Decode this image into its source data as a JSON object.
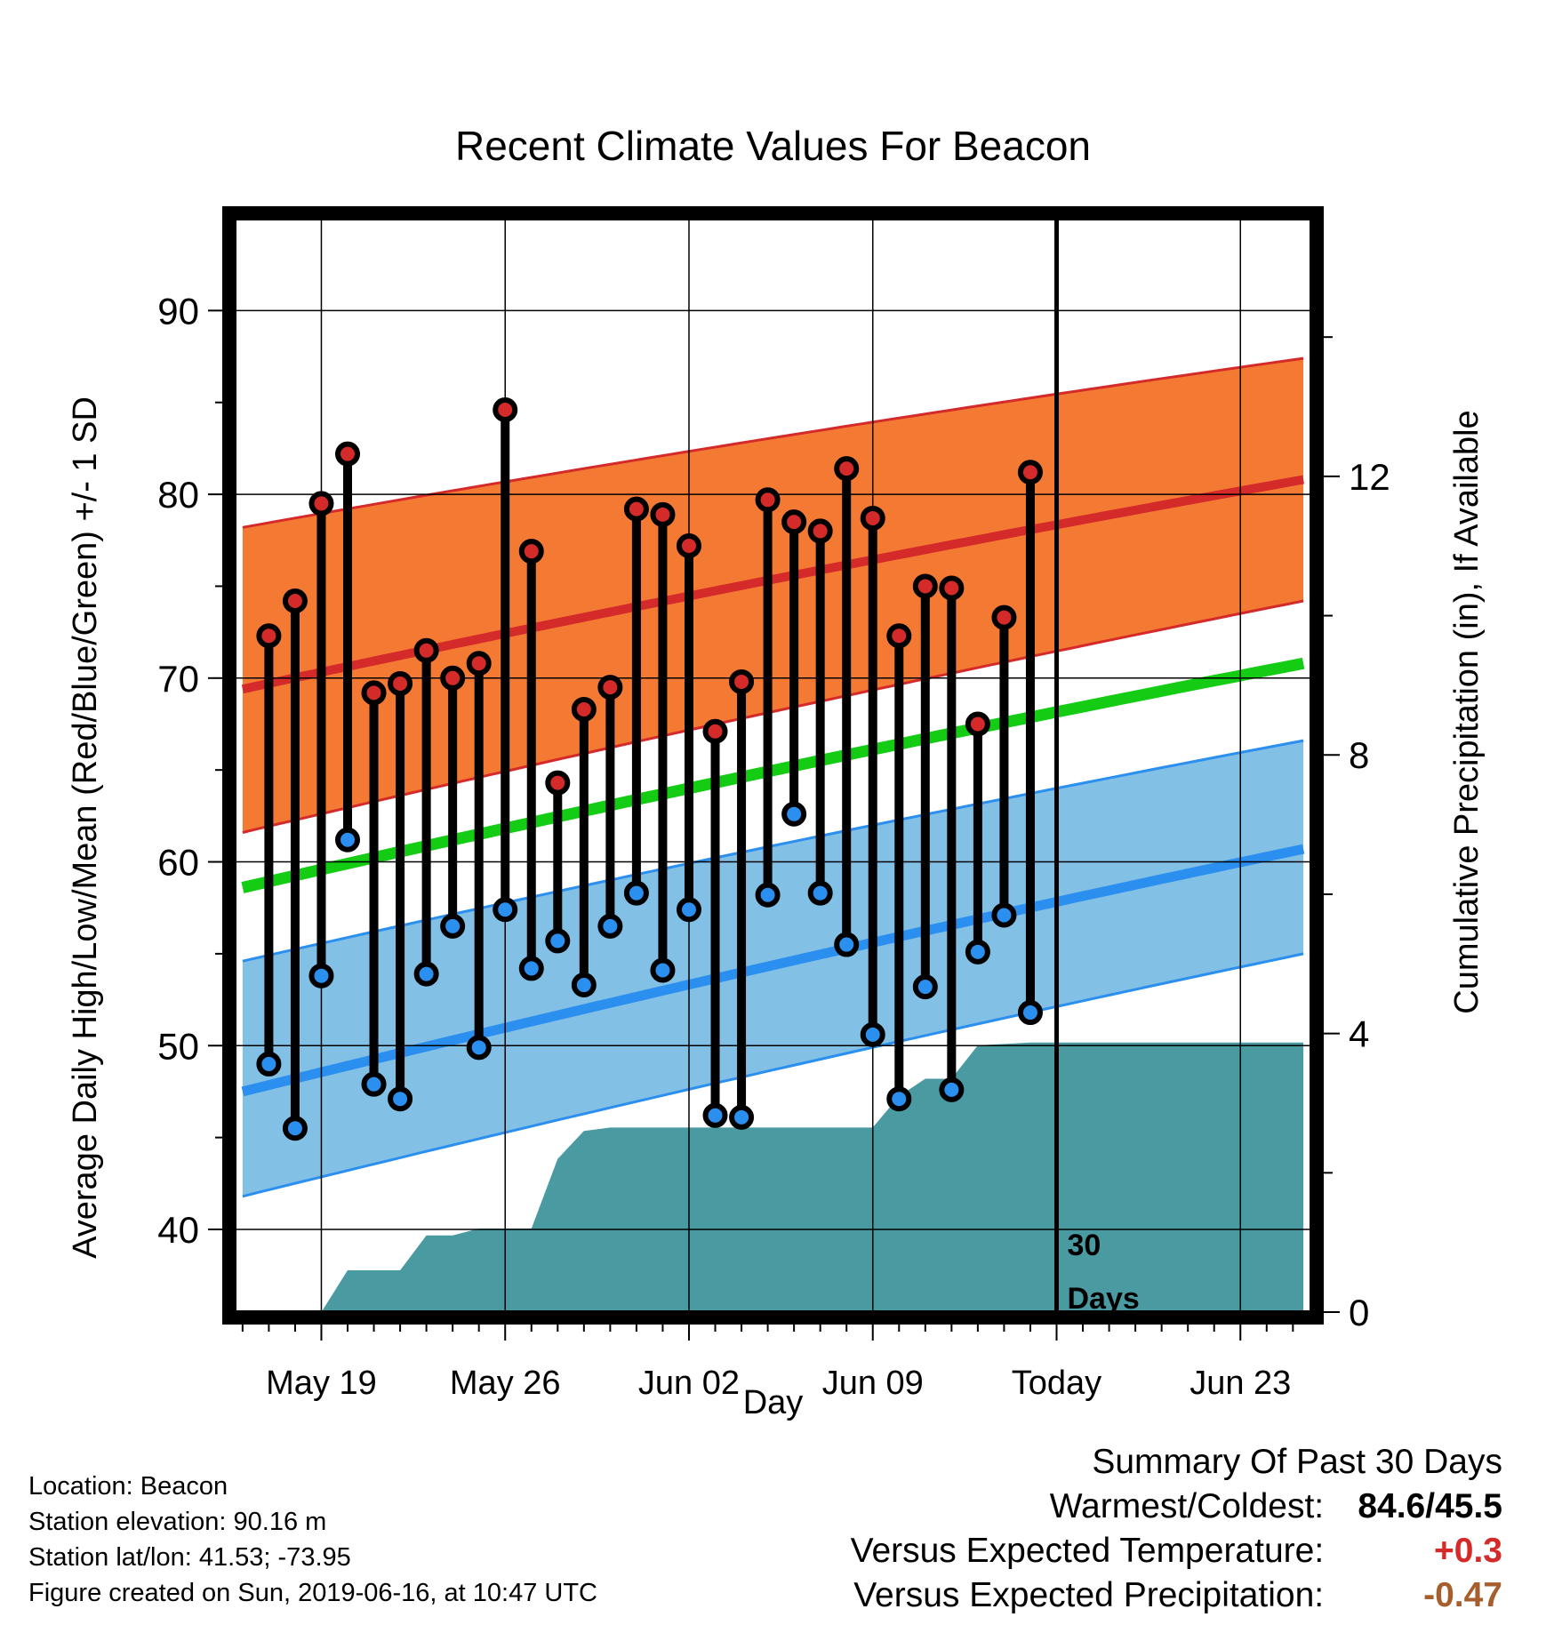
{
  "chart_data": {
    "type": "line",
    "title": "Recent Climate Values For Beacon",
    "xlabel": "Day",
    "ylabel": "Average Daily High/Low/Mean (Red/Blue/Green) +/- 1 SD",
    "y2label": "Cumulative Precipitation (in), If Available",
    "x_ticks": [
      {
        "day": 3,
        "label": "May 19"
      },
      {
        "day": 10,
        "label": "May 26"
      },
      {
        "day": 17,
        "label": "Jun 02"
      },
      {
        "day": 24,
        "label": "Jun 09"
      },
      {
        "day": 31,
        "label": "Today"
      },
      {
        "day": 38,
        "label": "Jun 23"
      }
    ],
    "today_day": 31,
    "today_label": [
      "30",
      "Days"
    ],
    "xlim": [
      -0.3,
      40.7
    ],
    "ylim": [
      35.5,
      95
    ],
    "y_ticks": [
      40,
      50,
      60,
      70,
      80,
      90
    ],
    "y2lim": [
      0,
      15.7
    ],
    "y2_ticks": [
      0,
      4,
      8,
      12
    ],
    "grid": true,
    "observed": {
      "days": [
        1,
        2,
        3,
        4,
        5,
        6,
        7,
        8,
        9,
        10,
        11,
        12,
        13,
        14,
        15,
        16,
        17,
        18,
        19,
        20,
        21,
        22,
        23,
        24,
        25,
        26,
        27,
        28,
        29,
        30
      ],
      "highs": [
        72.3,
        74.2,
        79.5,
        82.2,
        69.2,
        69.7,
        71.5,
        70.0,
        70.8,
        84.6,
        76.9,
        64.3,
        68.3,
        69.5,
        79.2,
        78.9,
        77.2,
        67.1,
        69.8,
        79.7,
        78.5,
        78.0,
        81.4,
        78.7,
        72.3,
        75.0,
        74.9,
        67.5,
        73.3,
        81.2
      ],
      "lows": [
        49.0,
        45.5,
        53.8,
        61.2,
        47.9,
        47.1,
        53.9,
        56.5,
        49.9,
        57.4,
        54.2,
        55.7,
        53.3,
        56.5,
        58.3,
        54.1,
        57.4,
        46.2,
        46.1,
        58.2,
        62.6,
        58.3,
        55.5,
        50.6,
        47.1,
        53.2,
        47.6,
        55.1,
        57.1,
        51.8
      ]
    },
    "normals": {
      "days": [
        0,
        40.4
      ],
      "high_mean": [
        69.4,
        80.8
      ],
      "high_upper": [
        78.2,
        87.4
      ],
      "high_lower": [
        61.6,
        74.2
      ],
      "low_mean": [
        47.5,
        60.7
      ],
      "low_upper": [
        54.6,
        66.6
      ],
      "low_lower": [
        41.8,
        55.0
      ],
      "mean": [
        58.6,
        70.8
      ]
    },
    "precipitation": {
      "days": [
        0,
        3,
        4,
        5,
        6,
        7,
        8,
        9,
        10,
        11,
        12,
        13,
        14,
        15,
        16,
        17,
        18,
        19,
        20,
        21,
        22,
        23,
        24,
        25,
        26,
        27,
        28,
        29,
        30,
        31,
        40.4
      ],
      "cumulative": [
        0,
        0,
        0.6,
        0.6,
        0.6,
        1.1,
        1.1,
        1.2,
        1.2,
        1.2,
        2.2,
        2.6,
        2.65,
        2.65,
        2.65,
        2.65,
        2.65,
        2.65,
        2.65,
        2.65,
        2.65,
        2.65,
        2.65,
        3.1,
        3.35,
        3.35,
        3.83,
        3.85,
        3.87,
        3.87,
        3.87
      ]
    },
    "colors": {
      "high_band": "#f47a33",
      "high_line": "#d42a2a",
      "low_band": "#83c0e5",
      "low_line": "#2b8ff0",
      "mean_line": "#14cc14",
      "precip_fill": "#4a9aa2",
      "high_marker": "#d42a2a",
      "low_marker": "#2b8ff0",
      "today_line": "#000000"
    }
  },
  "info": {
    "location": "Location: Beacon",
    "elevation": "Station elevation: 90.16 m",
    "latlon": "Station lat/lon: 41.53; -73.95",
    "created": "Figure created on Sun, 2019-06-16, at 10:47 UTC"
  },
  "summary": {
    "heading": "Summary Of Past 30 Days",
    "warmest_label": "Warmest/Coldest:",
    "warmest_value": "84.6/45.5",
    "temp_label": "Versus Expected Temperature:",
    "temp_value": "+0.3",
    "temp_color": "#d42a2a",
    "precip_label": "Versus Expected Precipitation:",
    "precip_value": "-0.47",
    "precip_color": "#a65f2c"
  }
}
